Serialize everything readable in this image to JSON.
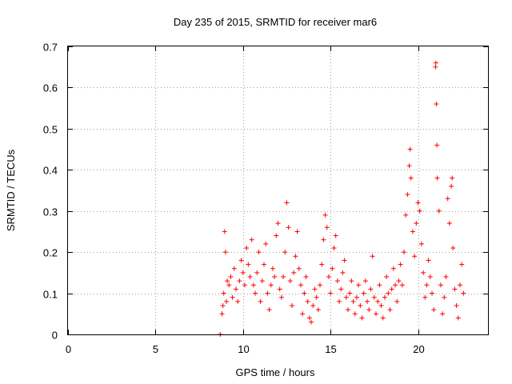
{
  "chart_data": {
    "type": "scatter",
    "title": "Day 235 of 2015, SRMTID for receiver mar6",
    "xlabel": "GPS time / hours",
    "ylabel": "SRMTID / TECUs",
    "xlim": [
      0,
      24
    ],
    "ylim": [
      0,
      0.7
    ],
    "xticks": [
      0,
      5,
      10,
      15,
      20
    ],
    "yticks": [
      0,
      0.1,
      0.2,
      0.3,
      0.4,
      0.5,
      0.6,
      0.7
    ],
    "xtick_labels": [
      "0",
      "5",
      "10",
      "15",
      "20"
    ],
    "ytick_labels": [
      "0",
      "0.1",
      "0.2",
      "0.3",
      "0.4",
      "0.5",
      "0.6",
      "0.7"
    ],
    "grid": true,
    "marker": "+",
    "marker_color": "#ff0000",
    "x_data_range": [
      8.7,
      22.6
    ],
    "series": [
      {
        "name": "SRMTID",
        "points": [
          [
            8.7,
            0.0
          ],
          [
            8.8,
            0.05
          ],
          [
            8.85,
            0.07
          ],
          [
            8.9,
            0.1
          ],
          [
            8.95,
            0.25
          ],
          [
            9.0,
            0.2
          ],
          [
            9.05,
            0.08
          ],
          [
            9.1,
            0.13
          ],
          [
            9.2,
            0.12
          ],
          [
            9.3,
            0.14
          ],
          [
            9.4,
            0.09
          ],
          [
            9.5,
            0.16
          ],
          [
            9.6,
            0.11
          ],
          [
            9.7,
            0.08
          ],
          [
            9.8,
            0.13
          ],
          [
            9.9,
            0.18
          ],
          [
            10.0,
            0.15
          ],
          [
            10.1,
            0.12
          ],
          [
            10.2,
            0.21
          ],
          [
            10.3,
            0.17
          ],
          [
            10.4,
            0.14
          ],
          [
            10.5,
            0.23
          ],
          [
            10.6,
            0.12
          ],
          [
            10.7,
            0.1
          ],
          [
            10.8,
            0.15
          ],
          [
            10.9,
            0.2
          ],
          [
            11.0,
            0.08
          ],
          [
            11.1,
            0.13
          ],
          [
            11.2,
            0.17
          ],
          [
            11.3,
            0.22
          ],
          [
            11.4,
            0.1
          ],
          [
            11.5,
            0.06
          ],
          [
            11.6,
            0.12
          ],
          [
            11.7,
            0.16
          ],
          [
            11.8,
            0.14
          ],
          [
            11.9,
            0.24
          ],
          [
            12.0,
            0.27
          ],
          [
            12.1,
            0.11
          ],
          [
            12.2,
            0.09
          ],
          [
            12.3,
            0.14
          ],
          [
            12.4,
            0.2
          ],
          [
            12.5,
            0.32
          ],
          [
            12.6,
            0.26
          ],
          [
            12.7,
            0.13
          ],
          [
            12.8,
            0.07
          ],
          [
            12.9,
            0.15
          ],
          [
            13.0,
            0.19
          ],
          [
            13.1,
            0.25
          ],
          [
            13.2,
            0.16
          ],
          [
            13.3,
            0.12
          ],
          [
            13.4,
            0.05
          ],
          [
            13.5,
            0.1
          ],
          [
            13.6,
            0.14
          ],
          [
            13.7,
            0.08
          ],
          [
            13.8,
            0.04
          ],
          [
            13.9,
            0.03
          ],
          [
            14.0,
            0.07
          ],
          [
            14.1,
            0.11
          ],
          [
            14.2,
            0.09
          ],
          [
            14.3,
            0.06
          ],
          [
            14.4,
            0.12
          ],
          [
            14.5,
            0.17
          ],
          [
            14.6,
            0.23
          ],
          [
            14.7,
            0.29
          ],
          [
            14.8,
            0.26
          ],
          [
            14.9,
            0.14
          ],
          [
            15.0,
            0.1
          ],
          [
            15.1,
            0.16
          ],
          [
            15.2,
            0.21
          ],
          [
            15.3,
            0.24
          ],
          [
            15.4,
            0.13
          ],
          [
            15.5,
            0.08
          ],
          [
            15.6,
            0.11
          ],
          [
            15.7,
            0.15
          ],
          [
            15.8,
            0.18
          ],
          [
            15.9,
            0.09
          ],
          [
            16.0,
            0.06
          ],
          [
            16.1,
            0.1
          ],
          [
            16.2,
            0.13
          ],
          [
            16.3,
            0.08
          ],
          [
            16.4,
            0.05
          ],
          [
            16.5,
            0.09
          ],
          [
            16.6,
            0.12
          ],
          [
            16.7,
            0.07
          ],
          [
            16.8,
            0.04
          ],
          [
            16.9,
            0.1
          ],
          [
            17.0,
            0.13
          ],
          [
            17.1,
            0.08
          ],
          [
            17.2,
            0.06
          ],
          [
            17.3,
            0.11
          ],
          [
            17.4,
            0.19
          ],
          [
            17.5,
            0.09
          ],
          [
            17.6,
            0.05
          ],
          [
            17.7,
            0.08
          ],
          [
            17.8,
            0.12
          ],
          [
            17.9,
            0.07
          ],
          [
            18.0,
            0.04
          ],
          [
            18.1,
            0.09
          ],
          [
            18.2,
            0.14
          ],
          [
            18.3,
            0.1
          ],
          [
            18.4,
            0.06
          ],
          [
            18.5,
            0.11
          ],
          [
            18.6,
            0.16
          ],
          [
            18.7,
            0.12
          ],
          [
            18.8,
            0.08
          ],
          [
            18.9,
            0.13
          ],
          [
            19.0,
            0.17
          ],
          [
            19.1,
            0.12
          ],
          [
            19.2,
            0.2
          ],
          [
            19.3,
            0.29
          ],
          [
            19.4,
            0.34
          ],
          [
            19.5,
            0.41
          ],
          [
            19.55,
            0.45
          ],
          [
            19.6,
            0.38
          ],
          [
            19.7,
            0.25
          ],
          [
            19.8,
            0.19
          ],
          [
            19.9,
            0.27
          ],
          [
            20.0,
            0.32
          ],
          [
            20.1,
            0.3
          ],
          [
            20.2,
            0.22
          ],
          [
            20.3,
            0.15
          ],
          [
            20.4,
            0.09
          ],
          [
            20.5,
            0.12
          ],
          [
            20.6,
            0.18
          ],
          [
            20.7,
            0.14
          ],
          [
            20.8,
            0.1
          ],
          [
            20.9,
            0.06
          ],
          [
            21.0,
            0.65
          ],
          [
            21.02,
            0.66
          ],
          [
            21.05,
            0.56
          ],
          [
            21.08,
            0.46
          ],
          [
            21.1,
            0.38
          ],
          [
            21.2,
            0.3
          ],
          [
            21.3,
            0.12
          ],
          [
            21.4,
            0.05
          ],
          [
            21.5,
            0.09
          ],
          [
            21.6,
            0.14
          ],
          [
            21.7,
            0.33
          ],
          [
            21.8,
            0.27
          ],
          [
            21.9,
            0.36
          ],
          [
            21.95,
            0.38
          ],
          [
            22.0,
            0.21
          ],
          [
            22.1,
            0.11
          ],
          [
            22.2,
            0.07
          ],
          [
            22.3,
            0.04
          ],
          [
            22.4,
            0.12
          ],
          [
            22.5,
            0.17
          ],
          [
            22.6,
            0.1
          ]
        ]
      }
    ]
  }
}
